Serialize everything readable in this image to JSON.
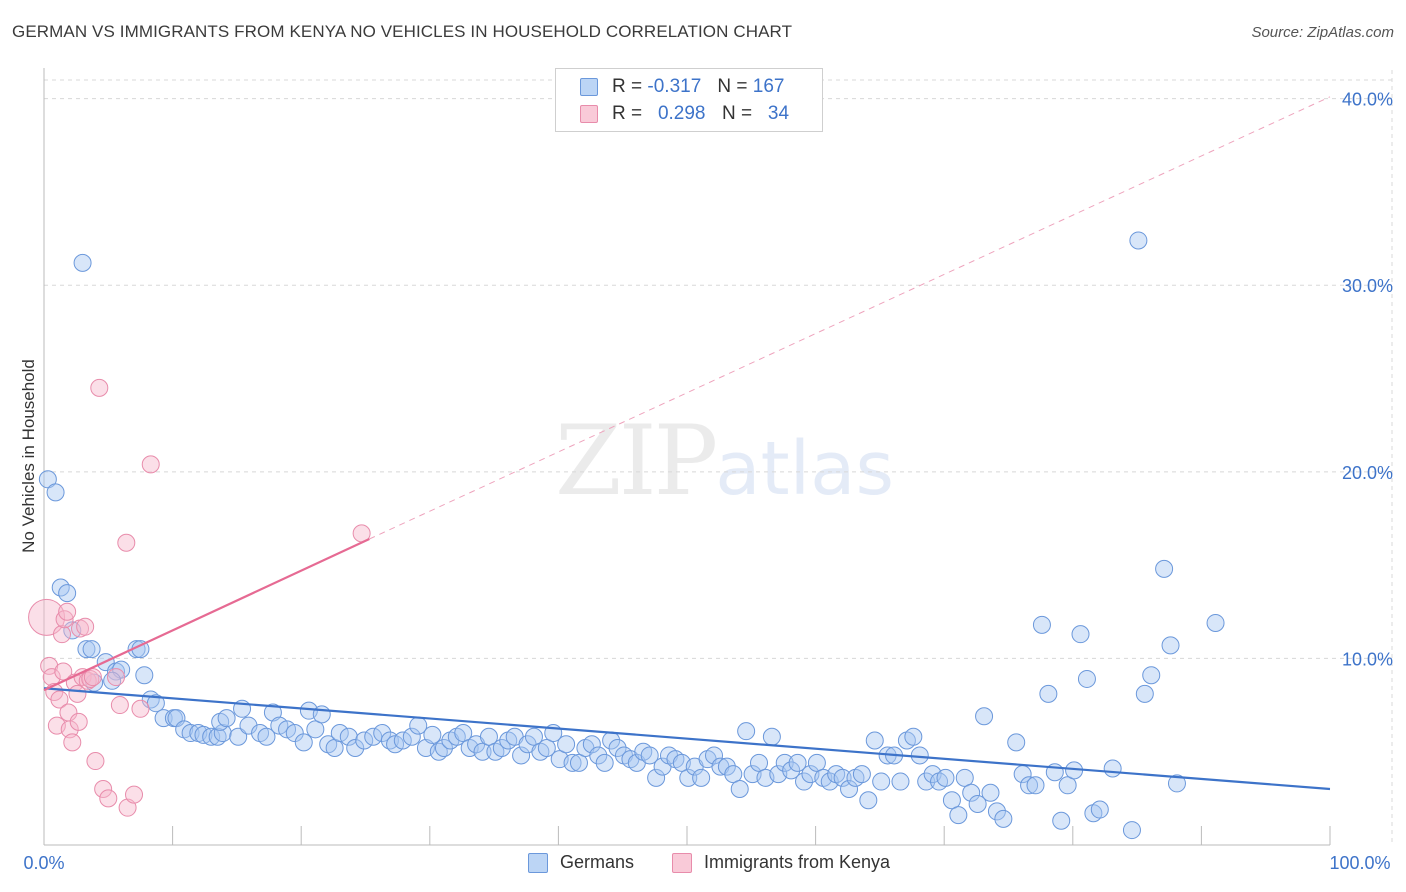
{
  "title": "GERMAN VS IMMIGRANTS FROM KENYA NO VEHICLES IN HOUSEHOLD CORRELATION CHART",
  "source": "Source: ZipAtlas.com",
  "watermark": {
    "zip": "ZIP",
    "atlas": "atlas"
  },
  "colors": {
    "blue": "#3d73c9",
    "blue_fill": "#a9c8f2",
    "pink": "#e66a93",
    "pink_fill": "#f6b8cb",
    "grid": "#d8d8d8"
  },
  "legend_top": [
    {
      "r_label": "R =",
      "r_value": "-0.317",
      "n_label": "N =",
      "n_value": "167"
    },
    {
      "r_label": "R =",
      "r_value": "0.298",
      "n_label": "N =",
      "n_value": "34"
    }
  ],
  "chart_data": {
    "type": "scatter",
    "title": "GERMAN VS IMMIGRANTS FROM KENYA NO VEHICLES IN HOUSEHOLD CORRELATION CHART",
    "xlabel": "",
    "ylabel": "No Vehicles in Household",
    "xlim": [
      0,
      100
    ],
    "ylim": [
      0,
      41
    ],
    "x_tick_labels": {
      "min": "0.0%",
      "max": "100.0%"
    },
    "y_ticks": [
      10,
      20,
      30,
      40
    ],
    "y_tick_labels": [
      "10.0%",
      "20.0%",
      "30.0%",
      "40.0%"
    ],
    "grid": true,
    "legend_placement": "bottom",
    "series": [
      {
        "name": "Germans",
        "color": "#3d73c9",
        "trend": {
          "x0": 0,
          "y0": 8.4,
          "x1": 100,
          "y1": 3.0
        },
        "points": [
          [
            0.3,
            19.6
          ],
          [
            0.9,
            18.9
          ],
          [
            3.0,
            31.2
          ],
          [
            1.3,
            13.8
          ],
          [
            1.8,
            13.5
          ],
          [
            2.2,
            11.5
          ],
          [
            3.3,
            10.5
          ],
          [
            3.7,
            10.5
          ],
          [
            7.2,
            10.5
          ],
          [
            7.5,
            10.5
          ],
          [
            4.8,
            9.8
          ],
          [
            5.6,
            9.3
          ],
          [
            6.0,
            9.4
          ],
          [
            7.8,
            9.1
          ],
          [
            3.9,
            8.7
          ],
          [
            5.3,
            8.8
          ],
          [
            8.3,
            7.8
          ],
          [
            8.7,
            7.6
          ],
          [
            9.3,
            6.8
          ],
          [
            10.1,
            6.8
          ],
          [
            10.3,
            6.8
          ],
          [
            10.9,
            6.2
          ],
          [
            11.4,
            6.0
          ],
          [
            12.0,
            6.0
          ],
          [
            12.4,
            5.9
          ],
          [
            13.0,
            5.8
          ],
          [
            13.5,
            5.8
          ],
          [
            13.9,
            6.0
          ],
          [
            13.7,
            6.6
          ],
          [
            14.2,
            6.8
          ],
          [
            15.1,
            5.8
          ],
          [
            15.4,
            7.3
          ],
          [
            15.9,
            6.4
          ],
          [
            16.8,
            6.0
          ],
          [
            17.3,
            5.8
          ],
          [
            17.8,
            7.1
          ],
          [
            18.3,
            6.4
          ],
          [
            18.9,
            6.2
          ],
          [
            19.5,
            6.0
          ],
          [
            20.2,
            5.5
          ],
          [
            20.6,
            7.2
          ],
          [
            21.1,
            6.2
          ],
          [
            21.6,
            7.0
          ],
          [
            22.1,
            5.4
          ],
          [
            22.6,
            5.2
          ],
          [
            23.0,
            6.0
          ],
          [
            23.7,
            5.8
          ],
          [
            24.2,
            5.2
          ],
          [
            24.9,
            5.6
          ],
          [
            25.6,
            5.8
          ],
          [
            26.3,
            6.0
          ],
          [
            26.9,
            5.6
          ],
          [
            27.3,
            5.4
          ],
          [
            27.9,
            5.6
          ],
          [
            28.6,
            5.8
          ],
          [
            29.1,
            6.4
          ],
          [
            29.7,
            5.2
          ],
          [
            30.2,
            5.9
          ],
          [
            30.7,
            5.0
          ],
          [
            31.1,
            5.2
          ],
          [
            31.6,
            5.6
          ],
          [
            32.1,
            5.8
          ],
          [
            32.6,
            6.0
          ],
          [
            33.1,
            5.2
          ],
          [
            33.6,
            5.4
          ],
          [
            34.1,
            5.0
          ],
          [
            34.6,
            5.8
          ],
          [
            35.1,
            5.0
          ],
          [
            35.6,
            5.2
          ],
          [
            36.1,
            5.6
          ],
          [
            36.6,
            5.8
          ],
          [
            37.1,
            4.8
          ],
          [
            37.6,
            5.4
          ],
          [
            38.1,
            5.8
          ],
          [
            38.6,
            5.0
          ],
          [
            39.1,
            5.2
          ],
          [
            39.6,
            6.0
          ],
          [
            40.1,
            4.6
          ],
          [
            40.6,
            5.4
          ],
          [
            41.1,
            4.4
          ],
          [
            41.6,
            4.4
          ],
          [
            42.1,
            5.2
          ],
          [
            42.6,
            5.4
          ],
          [
            43.1,
            4.8
          ],
          [
            43.6,
            4.4
          ],
          [
            44.1,
            5.6
          ],
          [
            44.6,
            5.2
          ],
          [
            45.1,
            4.8
          ],
          [
            45.6,
            4.6
          ],
          [
            46.1,
            4.4
          ],
          [
            46.6,
            5.0
          ],
          [
            47.1,
            4.8
          ],
          [
            47.6,
            3.6
          ],
          [
            48.1,
            4.2
          ],
          [
            48.6,
            4.8
          ],
          [
            49.1,
            4.6
          ],
          [
            49.6,
            4.4
          ],
          [
            50.1,
            3.6
          ],
          [
            50.6,
            4.2
          ],
          [
            51.1,
            3.6
          ],
          [
            51.6,
            4.6
          ],
          [
            52.1,
            4.8
          ],
          [
            52.6,
            4.2
          ],
          [
            53.1,
            4.2
          ],
          [
            53.6,
            3.8
          ],
          [
            54.1,
            3.0
          ],
          [
            54.6,
            6.1
          ],
          [
            55.1,
            3.8
          ],
          [
            55.6,
            4.4
          ],
          [
            56.1,
            3.6
          ],
          [
            56.6,
            5.8
          ],
          [
            57.1,
            3.8
          ],
          [
            57.6,
            4.4
          ],
          [
            58.1,
            4.0
          ],
          [
            58.6,
            4.4
          ],
          [
            59.1,
            3.4
          ],
          [
            59.6,
            3.8
          ],
          [
            60.1,
            4.4
          ],
          [
            60.6,
            3.6
          ],
          [
            61.1,
            3.4
          ],
          [
            61.6,
            3.8
          ],
          [
            62.1,
            3.6
          ],
          [
            62.6,
            3.0
          ],
          [
            63.1,
            3.6
          ],
          [
            63.6,
            3.8
          ],
          [
            64.1,
            2.4
          ],
          [
            64.6,
            5.6
          ],
          [
            65.1,
            3.4
          ],
          [
            65.6,
            4.8
          ],
          [
            66.1,
            4.8
          ],
          [
            66.6,
            3.4
          ],
          [
            67.1,
            5.6
          ],
          [
            67.6,
            5.8
          ],
          [
            68.1,
            4.8
          ],
          [
            68.6,
            3.4
          ],
          [
            69.1,
            3.8
          ],
          [
            69.6,
            3.4
          ],
          [
            70.1,
            3.6
          ],
          [
            70.6,
            2.4
          ],
          [
            71.1,
            1.6
          ],
          [
            71.6,
            3.6
          ],
          [
            72.1,
            2.8
          ],
          [
            72.6,
            2.2
          ],
          [
            73.1,
            6.9
          ],
          [
            73.6,
            2.8
          ],
          [
            74.1,
            1.8
          ],
          [
            74.6,
            1.4
          ],
          [
            75.6,
            5.5
          ],
          [
            76.1,
            3.8
          ],
          [
            76.6,
            3.2
          ],
          [
            77.1,
            3.2
          ],
          [
            77.6,
            11.8
          ],
          [
            78.1,
            8.1
          ],
          [
            78.6,
            3.9
          ],
          [
            79.1,
            1.3
          ],
          [
            79.6,
            3.2
          ],
          [
            80.1,
            4.0
          ],
          [
            80.6,
            11.3
          ],
          [
            81.1,
            8.9
          ],
          [
            81.6,
            1.7
          ],
          [
            82.1,
            1.9
          ],
          [
            83.1,
            4.1
          ],
          [
            84.6,
            0.8
          ],
          [
            85.6,
            8.1
          ],
          [
            85.1,
            32.4
          ],
          [
            86.1,
            9.1
          ],
          [
            87.1,
            14.8
          ],
          [
            87.6,
            10.7
          ],
          [
            88.1,
            3.3
          ],
          [
            91.1,
            11.9
          ]
        ]
      },
      {
        "name": "Immigrants from Kenya",
        "color": "#e66a93",
        "trend": {
          "x0": 0,
          "y0": 8.3,
          "x1": 25.3,
          "y1": 16.4,
          "dash_x1": 100,
          "dash_y1": 40.1
        },
        "points": [
          [
            0.2,
            12.2
          ],
          [
            0.4,
            9.6
          ],
          [
            0.6,
            9.0
          ],
          [
            0.8,
            8.2
          ],
          [
            1.0,
            6.4
          ],
          [
            1.2,
            7.8
          ],
          [
            1.4,
            11.3
          ],
          [
            1.5,
            9.3
          ],
          [
            1.6,
            12.1
          ],
          [
            1.8,
            12.5
          ],
          [
            1.9,
            7.1
          ],
          [
            2.0,
            6.2
          ],
          [
            2.2,
            5.5
          ],
          [
            2.4,
            8.7
          ],
          [
            2.6,
            8.1
          ],
          [
            2.7,
            6.6
          ],
          [
            2.8,
            11.6
          ],
          [
            3.0,
            9.0
          ],
          [
            3.2,
            11.7
          ],
          [
            3.4,
            8.8
          ],
          [
            3.6,
            8.9
          ],
          [
            3.8,
            9.0
          ],
          [
            4.0,
            4.5
          ],
          [
            4.3,
            24.5
          ],
          [
            4.6,
            3.0
          ],
          [
            5.0,
            2.5
          ],
          [
            5.6,
            9.0
          ],
          [
            5.9,
            7.5
          ],
          [
            6.4,
            16.2
          ],
          [
            6.5,
            2.0
          ],
          [
            7.0,
            2.7
          ],
          [
            7.5,
            7.3
          ],
          [
            8.3,
            20.4
          ],
          [
            24.7,
            16.7
          ]
        ]
      }
    ]
  }
}
